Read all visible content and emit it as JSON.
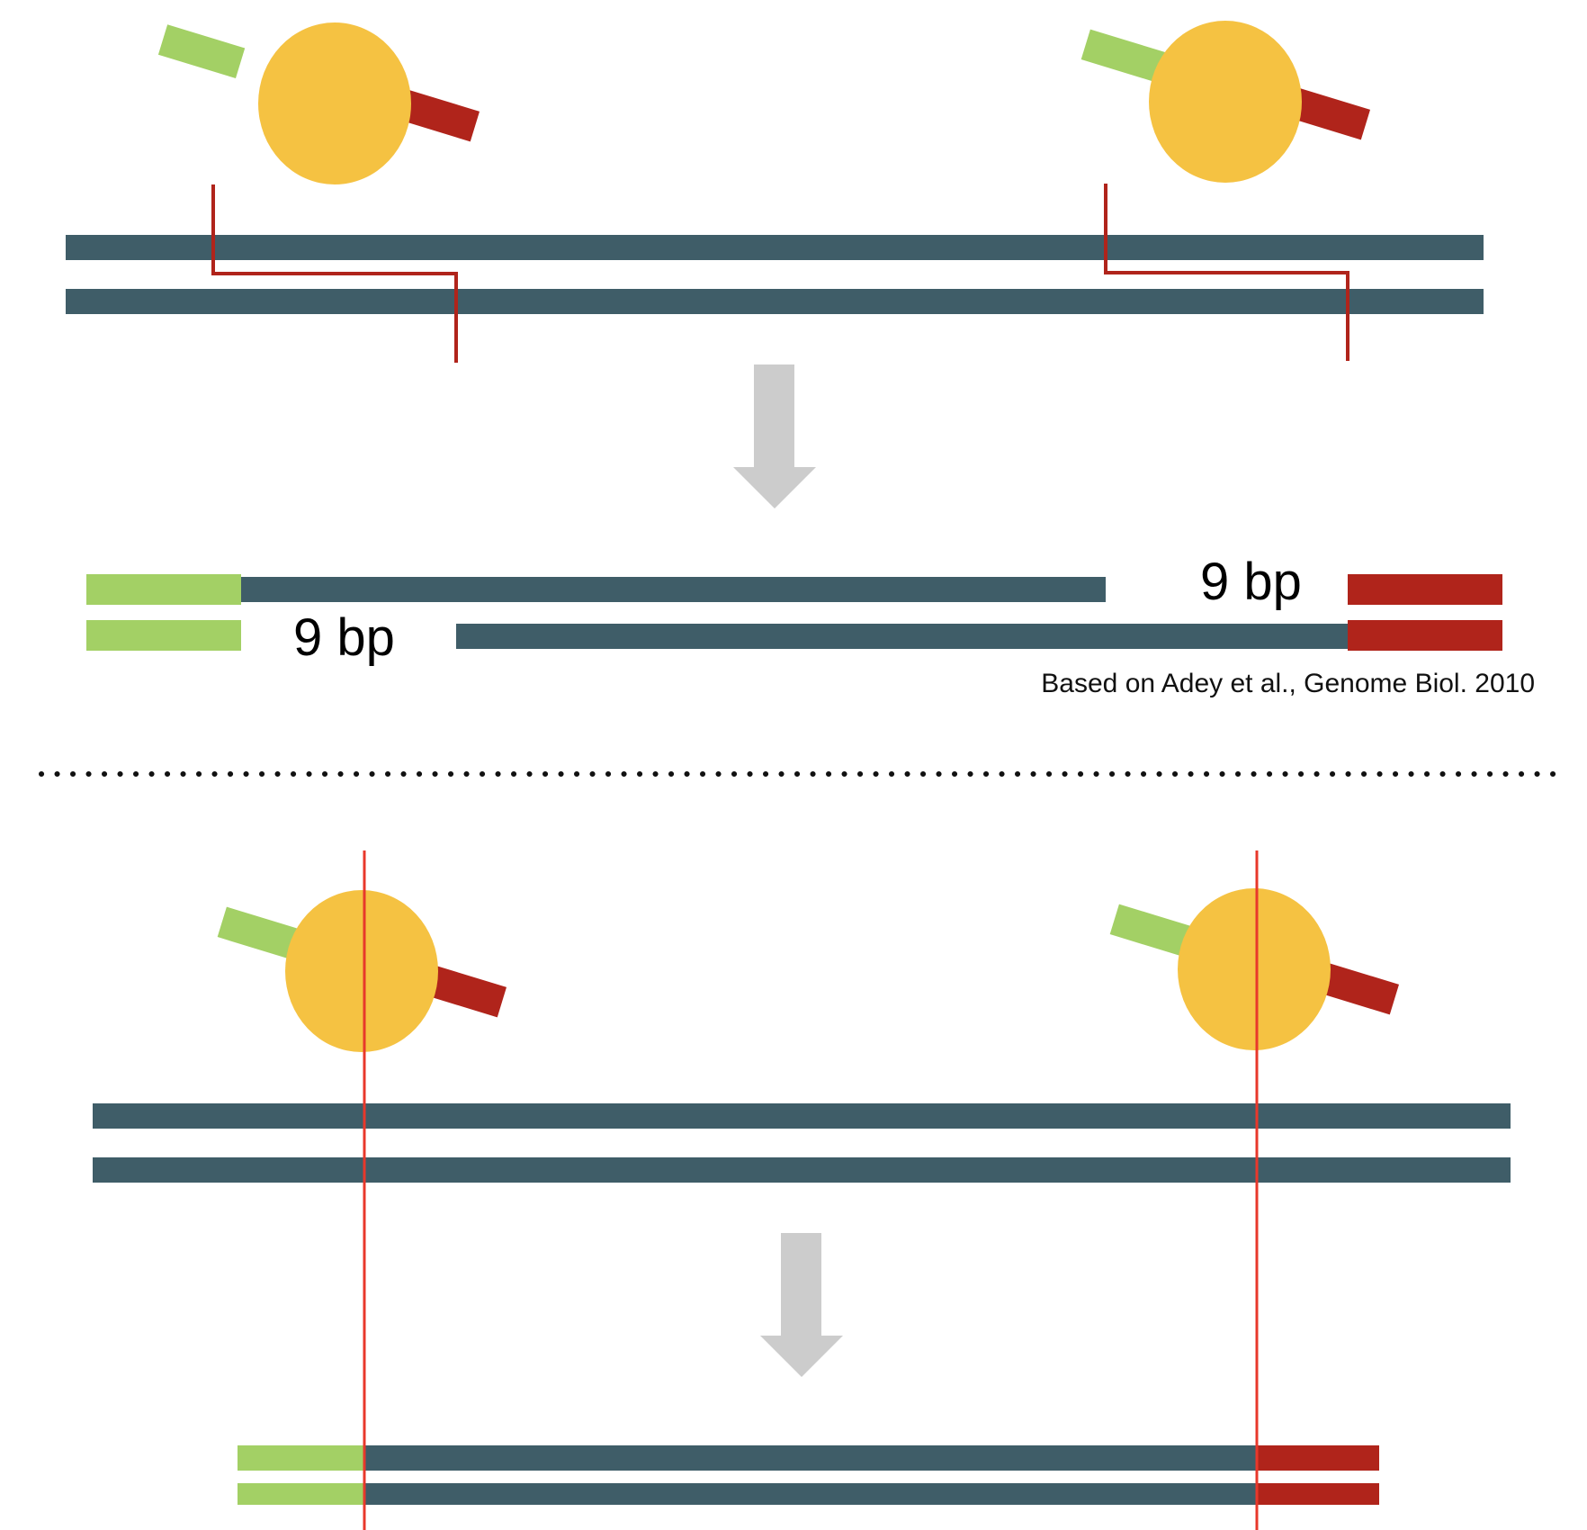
{
  "labels": {
    "gap_left": "9 bp",
    "gap_right": "9 bp",
    "citation": "Based on Adey et al., Genome Biol. 2010"
  },
  "colors": {
    "dna_strand": "#3f5d68",
    "transposase": "#f5c242",
    "adapter_green": "#a3d065",
    "adapter_red": "#b0241b",
    "cut_line_top": "#b0241b",
    "cut_line_bottom": "#e8382b",
    "arrow": "#cccccc",
    "divider": "#111111"
  },
  "panels": [
    {
      "id": "top",
      "cut_style": "staggered",
      "gap_bp": 9
    },
    {
      "id": "bottom",
      "cut_style": "blunt"
    }
  ]
}
